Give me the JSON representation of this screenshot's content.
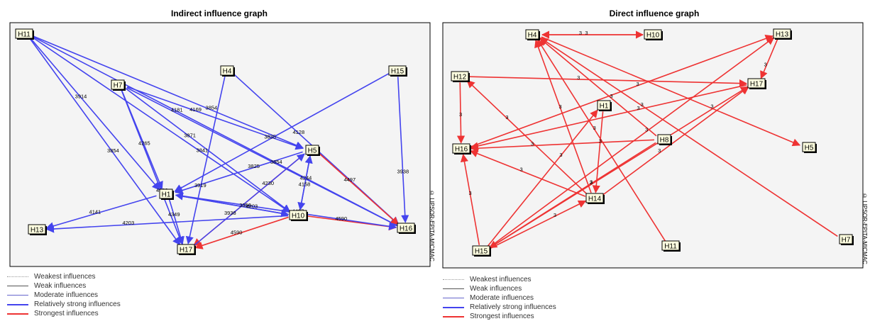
{
  "colors": {
    "frame_fill": "#f4f4f4",
    "node_fill": "#ffffe0",
    "blue": "#4444ee",
    "red": "#ee3333",
    "legend_dotted": "#999999",
    "legend_thin": "#555555",
    "legend_moderate": "#6666cc"
  },
  "legend": [
    {
      "label": "Weakest influences",
      "style": "weakest"
    },
    {
      "label": "Weak influences",
      "style": "weak"
    },
    {
      "label": "Moderate influences",
      "style": "moderate"
    },
    {
      "label": "Relatively strong influences",
      "style": "strong"
    },
    {
      "label": "Strongest influences",
      "style": "strongest"
    }
  ],
  "graphs": [
    {
      "id": "indirect",
      "title": "Indirect influence graph",
      "credit": "© LIPSOR-EPITA-MICMAC",
      "nodes": [
        "H11",
        "H7",
        "H4",
        "H15",
        "H5",
        "H1",
        "H13",
        "H10",
        "H16",
        "H17"
      ],
      "edges": [
        {
          "from": "H11",
          "to": "H1",
          "label": "3914",
          "kind": "strong"
        },
        {
          "from": "H11",
          "to": "H17",
          "label": "3854",
          "kind": "strong"
        },
        {
          "from": "H11",
          "to": "H10",
          "label": "3841",
          "kind": "strong"
        },
        {
          "from": "H11",
          "to": "H16",
          "label": "4181",
          "kind": "strong"
        },
        {
          "from": "H7",
          "to": "H1",
          "label": "4265",
          "kind": "strong"
        },
        {
          "from": "H7",
          "to": "H17",
          "label": "4128",
          "kind": "strong"
        },
        {
          "from": "H7",
          "to": "H10",
          "label": "3871",
          "kind": "strong"
        },
        {
          "from": "H7",
          "to": "H16",
          "label": "3854",
          "kind": "strong"
        },
        {
          "from": "H4",
          "to": "H17",
          "label": "3919",
          "kind": "strong"
        },
        {
          "from": "H4",
          "to": "H16",
          "label": "4128",
          "kind": "strong"
        },
        {
          "from": "H15",
          "to": "H1",
          "label": "3835",
          "kind": "strong"
        },
        {
          "from": "H15",
          "to": "H16",
          "label": "3938",
          "kind": "strong"
        },
        {
          "from": "H5",
          "to": "H1",
          "label": "3825",
          "kind": "strong"
        },
        {
          "from": "H5",
          "to": "H10",
          "label": "4158",
          "kind": "strong"
        },
        {
          "from": "H5",
          "to": "H17",
          "label": "3938",
          "kind": "strongest"
        },
        {
          "from": "H5",
          "to": "H16",
          "label": "4497",
          "kind": "strongest"
        },
        {
          "from": "H1",
          "to": "H13",
          "label": "4141",
          "kind": "strong"
        },
        {
          "from": "H1",
          "to": "H10",
          "label": "4203",
          "kind": "strong"
        },
        {
          "from": "H10",
          "to": "H1",
          "label": "3956",
          "kind": "strong"
        },
        {
          "from": "H10",
          "to": "H5",
          "label": "4244",
          "kind": "strong"
        },
        {
          "from": "H10",
          "to": "H13",
          "label": "4203",
          "kind": "strong"
        },
        {
          "from": "H10",
          "to": "H16",
          "label": "4590",
          "kind": "strongest"
        },
        {
          "from": "H10",
          "to": "H17",
          "label": "4590",
          "kind": "strongest"
        },
        {
          "from": "H11",
          "to": "H5",
          "label": "3854",
          "kind": "strong"
        },
        {
          "from": "H7",
          "to": "H5",
          "label": "4169",
          "kind": "strong"
        },
        {
          "from": "H1",
          "to": "H16",
          "label": "4497",
          "kind": "strong"
        },
        {
          "from": "H17",
          "to": "H5",
          "label": "4230",
          "kind": "strong"
        },
        {
          "from": "H1",
          "to": "H17",
          "label": "4349",
          "kind": "strong"
        }
      ]
    },
    {
      "id": "direct",
      "title": "Direct influence graph",
      "credit": "© LIPSOR-EPITA-MICMAC",
      "nodes": [
        "H4",
        "H10",
        "H13",
        "H12",
        "H17",
        "H1",
        "H16",
        "H8",
        "H5",
        "H14",
        "H15",
        "H11",
        "H7"
      ],
      "edges": [
        {
          "from": "H4",
          "to": "H10",
          "label": "3",
          "kind": "strongest"
        },
        {
          "from": "H10",
          "to": "H4",
          "label": "3",
          "kind": "strongest"
        },
        {
          "from": "H13",
          "to": "H17",
          "label": "3",
          "kind": "strongest"
        },
        {
          "from": "H12",
          "to": "H17",
          "label": "3",
          "kind": "strongest"
        },
        {
          "from": "H12",
          "to": "H16",
          "label": "3",
          "kind": "strongest"
        },
        {
          "from": "H4",
          "to": "H5",
          "label": "3",
          "kind": "strongest"
        },
        {
          "from": "H8",
          "to": "H4",
          "label": "3",
          "kind": "strongest"
        },
        {
          "from": "H11",
          "to": "H4",
          "label": "3",
          "kind": "strongest"
        },
        {
          "from": "H7",
          "to": "H4",
          "label": "3",
          "kind": "strongest"
        },
        {
          "from": "H17",
          "to": "H16",
          "label": "3",
          "kind": "strongest"
        },
        {
          "from": "H16",
          "to": "H13",
          "label": "3",
          "kind": "strongest"
        },
        {
          "from": "H8",
          "to": "H16",
          "label": "3",
          "kind": "strongest"
        },
        {
          "from": "H1",
          "to": "H14",
          "label": "3",
          "kind": "strongest"
        },
        {
          "from": "H14",
          "to": "H16",
          "label": "3",
          "kind": "strongest"
        },
        {
          "from": "H14",
          "to": "H12",
          "label": "3",
          "kind": "strongest"
        },
        {
          "from": "H14",
          "to": "H17",
          "label": "3",
          "kind": "strongest"
        },
        {
          "from": "H15",
          "to": "H16",
          "label": "3",
          "kind": "strongest"
        },
        {
          "from": "H15",
          "to": "H1",
          "label": "3",
          "kind": "strongest"
        },
        {
          "from": "H15",
          "to": "H17",
          "label": "3",
          "kind": "strongest"
        },
        {
          "from": "H15",
          "to": "H13",
          "label": "3",
          "kind": "strongest"
        },
        {
          "from": "H15",
          "to": "H14",
          "label": "3",
          "kind": "strongest"
        },
        {
          "from": "H8",
          "to": "H15",
          "label": "3",
          "kind": "strongest"
        },
        {
          "from": "H14",
          "to": "H4",
          "label": "3",
          "kind": "strongest"
        }
      ]
    }
  ]
}
